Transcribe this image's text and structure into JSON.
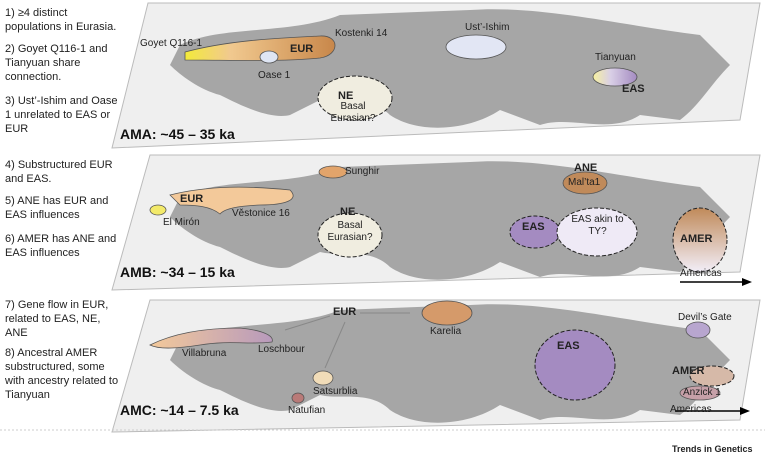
{
  "panels": [
    {
      "label": "AMA: ~45 – 35 ka",
      "notes": [
        "1) ≥4 distinct populations in Eurasia.",
        "2) Goyet Q116-1 and Tianyuan share connection.",
        "3) Ust’-Ishim and Oase 1 unrelated to EAS or EUR"
      ],
      "sites": [
        "Goyet Q116-1",
        "EUR",
        "Kostenki 14",
        "Ust’-Ishim",
        "Oase 1",
        "NE",
        "Basal Eurasian?",
        "Tianyuan",
        "EAS"
      ]
    },
    {
      "label": "AMB: ~34 – 15 ka",
      "notes": [
        "4) Substructured EUR and EAS.",
        "5) ANE has EUR and EAS influences",
        "6) AMER has ANE and EAS influences"
      ],
      "sites": [
        "Sunghir",
        "ANE",
        "Mal’ta1",
        "EUR",
        "Věstonice 16",
        "El Mirón",
        "NE",
        "Basal Eurasian?",
        "EAS",
        "EAS akin to TY?",
        "AMER",
        "Americas"
      ]
    },
    {
      "label": "AMC: ~14 – 7.5 ka",
      "notes": [
        "7) Gene flow in EUR, related to EAS, NE, ANE",
        "8) Ancestral AMER substructured, some with ancestry related to Tianyuan"
      ],
      "sites": [
        "EUR",
        "Loschbour",
        "Karelia",
        "Villabruna",
        "Satsurblia",
        "Natufian",
        "EAS",
        "Devil’s Gate",
        "AMER",
        "Anzick 1",
        "Americas"
      ]
    }
  ],
  "footer": "Trends in Genetics"
}
